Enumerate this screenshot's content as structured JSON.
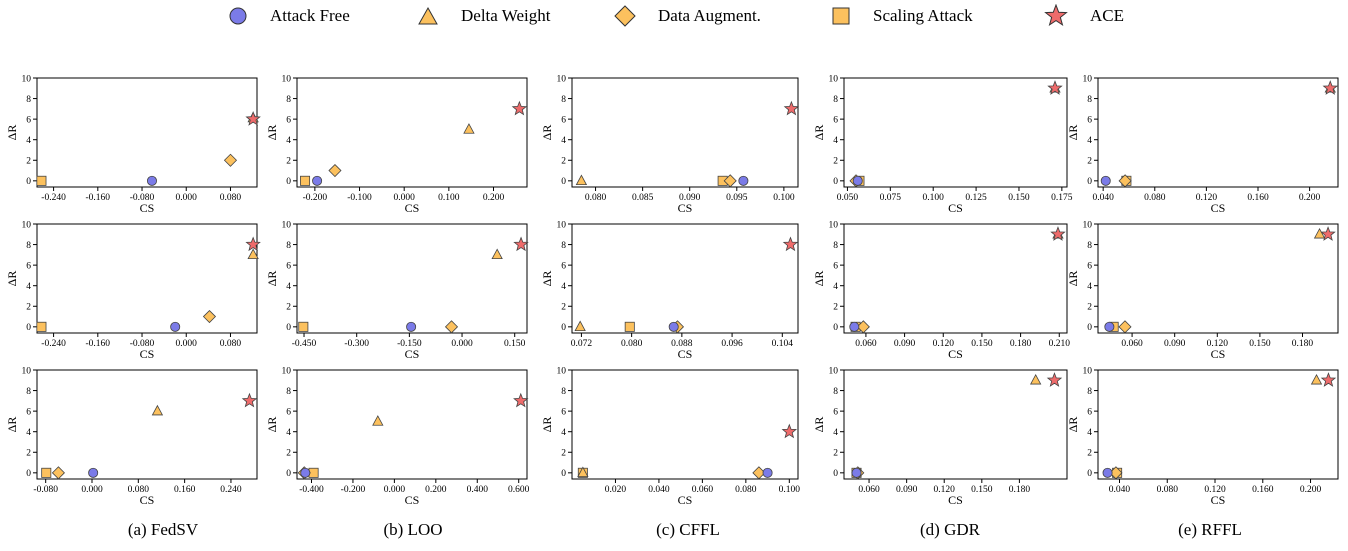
{
  "legend": [
    {
      "key": "attack_free",
      "label": "Attack Free",
      "marker": "circle",
      "color": "#7b7be8"
    },
    {
      "key": "delta_weight",
      "label": "Delta Weight",
      "marker": "triangle",
      "color": "#fcc15e"
    },
    {
      "key": "data_augment",
      "label": "Data Augment.",
      "marker": "diamond",
      "color": "#fcc15e"
    },
    {
      "key": "scaling_attack",
      "label": "Scaling Attack",
      "marker": "square",
      "color": "#fcc15e"
    },
    {
      "key": "ace",
      "label": "ACE",
      "marker": "star",
      "color": "#ee6b6b"
    }
  ],
  "captions": [
    "(a) FedSV",
    "(b) LOO",
    "(c) CFFL",
    "(d) GDR",
    "(e) RFFL"
  ],
  "chart_data": [
    {
      "type": "scatter",
      "row": 0,
      "col": 0,
      "xlabel": "CS",
      "ylabel": "ΔR",
      "xlim": [
        -0.27,
        0.128
      ],
      "ylim": [
        -0.6,
        10
      ],
      "xticks": [
        -0.24,
        -0.16,
        -0.08,
        0.0,
        0.08
      ],
      "xtick_labels": [
        "-0.240",
        "-0.160",
        "-0.080",
        "0.000",
        "0.080"
      ],
      "yticks": [
        0,
        2,
        4,
        6,
        8,
        10
      ],
      "points": {
        "attack_free": [
          -0.062,
          0
        ],
        "delta_weight": [
          0.121,
          6.1
        ],
        "data_augment": [
          0.08,
          2
        ],
        "scaling_attack": [
          -0.262,
          0
        ],
        "ace": [
          0.121,
          6
        ]
      }
    },
    {
      "type": "scatter",
      "row": 0,
      "col": 1,
      "xlabel": "CS",
      "ylabel": "ΔR",
      "xlim": [
        -0.24,
        0.275
      ],
      "ylim": [
        -0.6,
        10
      ],
      "xticks": [
        -0.2,
        -0.1,
        0.0,
        0.1,
        0.2
      ],
      "xtick_labels": [
        "-0.200",
        "-0.100",
        "0.000",
        "0.100",
        "0.200"
      ],
      "yticks": [
        0,
        2,
        4,
        6,
        8,
        10
      ],
      "points": {
        "attack_free": [
          -0.195,
          0
        ],
        "delta_weight": [
          0.145,
          5
        ],
        "data_augment": [
          -0.155,
          1
        ],
        "scaling_attack": [
          -0.222,
          0
        ],
        "ace": [
          0.258,
          7
        ]
      }
    },
    {
      "type": "scatter",
      "row": 0,
      "col": 2,
      "xlabel": "CS",
      "ylabel": "ΔR",
      "xlim": [
        0.0775,
        0.1015
      ],
      "ylim": [
        -0.6,
        10
      ],
      "xticks": [
        0.08,
        0.085,
        0.09,
        0.095,
        0.1
      ],
      "xtick_labels": [
        "0.080",
        "0.085",
        "0.090",
        "0.095",
        "0.100"
      ],
      "yticks": [
        0,
        2,
        4,
        6,
        8,
        10
      ],
      "points": {
        "attack_free": [
          0.0957,
          0
        ],
        "delta_weight": [
          0.0785,
          0
        ],
        "data_augment": [
          0.0943,
          0
        ],
        "scaling_attack": [
          0.0935,
          0
        ],
        "ace": [
          0.1008,
          7
        ]
      }
    },
    {
      "type": "scatter",
      "row": 0,
      "col": 3,
      "xlabel": "CS",
      "ylabel": "ΔR",
      "xlim": [
        0.048,
        0.178
      ],
      "ylim": [
        -0.6,
        10
      ],
      "xticks": [
        0.05,
        0.075,
        0.1,
        0.125,
        0.15,
        0.175
      ],
      "xtick_labels": [
        "0.050",
        "0.075",
        "0.100",
        "0.125",
        "0.150",
        "0.175"
      ],
      "yticks": [
        0,
        2,
        4,
        6,
        8,
        10
      ],
      "points": {
        "attack_free": [
          0.056,
          0
        ],
        "delta_weight": [
          0.171,
          9
        ],
        "data_augment": [
          0.055,
          0
        ],
        "scaling_attack": [
          0.057,
          0
        ],
        "ace": [
          0.171,
          9
        ]
      }
    },
    {
      "type": "scatter",
      "row": 0,
      "col": 4,
      "xlabel": "CS",
      "ylabel": "ΔR",
      "xlim": [
        0.036,
        0.222
      ],
      "ylim": [
        -0.6,
        10
      ],
      "xticks": [
        0.04,
        0.08,
        0.12,
        0.16,
        0.2
      ],
      "xtick_labels": [
        "0.040",
        "0.080",
        "0.120",
        "0.160",
        "0.200"
      ],
      "yticks": [
        0,
        2,
        4,
        6,
        8,
        10
      ],
      "points": {
        "attack_free": [
          0.042,
          0
        ],
        "delta_weight": [
          0.216,
          9
        ],
        "data_augment": [
          0.057,
          0
        ],
        "scaling_attack": [
          0.058,
          0
        ],
        "ace": [
          0.216,
          9
        ]
      }
    },
    {
      "type": "scatter",
      "row": 1,
      "col": 0,
      "xlabel": "CS",
      "ylabel": "ΔR",
      "xlim": [
        -0.27,
        0.128
      ],
      "ylim": [
        -0.6,
        10
      ],
      "xticks": [
        -0.24,
        -0.16,
        -0.08,
        0.0,
        0.08
      ],
      "xtick_labels": [
        "-0.240",
        "-0.160",
        "-0.080",
        "0.000",
        "0.080"
      ],
      "yticks": [
        0,
        2,
        4,
        6,
        8,
        10
      ],
      "points": {
        "attack_free": [
          -0.02,
          0
        ],
        "delta_weight": [
          0.121,
          7
        ],
        "data_augment": [
          0.042,
          1
        ],
        "scaling_attack": [
          -0.262,
          0
        ],
        "ace": [
          0.121,
          8
        ]
      }
    },
    {
      "type": "scatter",
      "row": 1,
      "col": 1,
      "xlabel": "CS",
      "ylabel": "ΔR",
      "xlim": [
        -0.47,
        0.185
      ],
      "ylim": [
        -0.6,
        10
      ],
      "xticks": [
        -0.45,
        -0.3,
        -0.15,
        0.0,
        0.15
      ],
      "xtick_labels": [
        "-0.450",
        "-0.300",
        "-0.150",
        "0.000",
        "0.150"
      ],
      "yticks": [
        0,
        2,
        4,
        6,
        8,
        10
      ],
      "points": {
        "attack_free": [
          -0.145,
          0
        ],
        "delta_weight": [
          0.1,
          7
        ],
        "data_augment": [
          -0.03,
          0
        ],
        "scaling_attack": [
          -0.452,
          0
        ],
        "ace": [
          0.168,
          8
        ]
      }
    },
    {
      "type": "scatter",
      "row": 1,
      "col": 2,
      "xlabel": "CS",
      "ylabel": "ΔR",
      "xlim": [
        0.0705,
        0.1065
      ],
      "ylim": [
        -0.6,
        10
      ],
      "xticks": [
        0.072,
        0.08,
        0.088,
        0.096,
        0.104
      ],
      "xtick_labels": [
        "0.072",
        "0.080",
        "0.088",
        "0.096",
        "0.104"
      ],
      "yticks": [
        0,
        2,
        4,
        6,
        8,
        10
      ],
      "points": {
        "attack_free": [
          0.0867,
          0
        ],
        "delta_weight": [
          0.0718,
          0
        ],
        "data_augment": [
          0.0873,
          0
        ],
        "scaling_attack": [
          0.0797,
          0
        ],
        "ace": [
          0.1053,
          8
        ]
      }
    },
    {
      "type": "scatter",
      "row": 1,
      "col": 3,
      "xlabel": "CS",
      "ylabel": "ΔR",
      "xlim": [
        0.043,
        0.216
      ],
      "ylim": [
        -0.6,
        10
      ],
      "xticks": [
        0.06,
        0.09,
        0.12,
        0.15,
        0.18,
        0.21
      ],
      "xtick_labels": [
        "0.060",
        "0.090",
        "0.120",
        "0.150",
        "0.180",
        "0.210"
      ],
      "yticks": [
        0,
        2,
        4,
        6,
        8,
        10
      ],
      "points": {
        "attack_free": [
          0.051,
          0
        ],
        "delta_weight": [
          0.209,
          9
        ],
        "data_augment": [
          0.058,
          0
        ],
        "scaling_attack": [
          0.052,
          0
        ],
        "ace": [
          0.209,
          9
        ]
      }
    },
    {
      "type": "scatter",
      "row": 1,
      "col": 4,
      "xlabel": "CS",
      "ylabel": "ΔR",
      "xlim": [
        0.036,
        0.205
      ],
      "ylim": [
        -0.6,
        10
      ],
      "xticks": [
        0.06,
        0.09,
        0.12,
        0.15,
        0.18
      ],
      "xtick_labels": [
        "0.060",
        "0.090",
        "0.120",
        "0.150",
        "0.180"
      ],
      "yticks": [
        0,
        2,
        4,
        6,
        8,
        10
      ],
      "points": {
        "attack_free": [
          0.044,
          0
        ],
        "delta_weight": [
          0.192,
          9
        ],
        "data_augment": [
          0.055,
          0
        ],
        "scaling_attack": [
          0.047,
          0
        ],
        "ace": [
          0.198,
          9
        ]
      }
    },
    {
      "type": "scatter",
      "row": 2,
      "col": 0,
      "xlabel": "CS",
      "ylabel": "ΔR",
      "xlim": [
        -0.095,
        0.285
      ],
      "ylim": [
        -0.6,
        10
      ],
      "xticks": [
        -0.08,
        0.0,
        0.08,
        0.16,
        0.24
      ],
      "xtick_labels": [
        "-0.080",
        "0.000",
        "0.080",
        "0.160",
        "0.240"
      ],
      "yticks": [
        0,
        2,
        4,
        6,
        8,
        10
      ],
      "points": {
        "attack_free": [
          0.002,
          0
        ],
        "delta_weight": [
          0.113,
          6
        ],
        "data_augment": [
          -0.058,
          0
        ],
        "scaling_attack": [
          -0.079,
          0
        ],
        "ace": [
          0.272,
          7
        ]
      }
    },
    {
      "type": "scatter",
      "row": 2,
      "col": 1,
      "xlabel": "CS",
      "ylabel": "ΔR",
      "xlim": [
        -0.47,
        0.64
      ],
      "ylim": [
        -0.6,
        10
      ],
      "xticks": [
        -0.4,
        -0.2,
        0.0,
        0.2,
        0.4,
        0.6
      ],
      "xtick_labels": [
        "-0.400",
        "-0.200",
        "0.000",
        "0.200",
        "0.400",
        "0.600"
      ],
      "yticks": [
        0,
        2,
        4,
        6,
        8,
        10
      ],
      "points": {
        "attack_free": [
          -0.43,
          0
        ],
        "delta_weight": [
          -0.08,
          5
        ],
        "data_augment": [
          -0.435,
          0
        ],
        "scaling_attack": [
          -0.39,
          0
        ],
        "ace": [
          0.61,
          7
        ]
      }
    },
    {
      "type": "scatter",
      "row": 2,
      "col": 2,
      "xlabel": "CS",
      "ylabel": "ΔR",
      "xlim": [
        0.0,
        0.104
      ],
      "ylim": [
        -0.6,
        10
      ],
      "xticks": [
        0.02,
        0.04,
        0.06,
        0.08,
        0.1
      ],
      "xtick_labels": [
        "0.020",
        "0.040",
        "0.060",
        "0.080",
        "0.100"
      ],
      "yticks": [
        0,
        2,
        4,
        6,
        8,
        10
      ],
      "points": {
        "attack_free": [
          0.09,
          0
        ],
        "delta_weight": [
          0.005,
          0
        ],
        "data_augment": [
          0.086,
          0
        ],
        "scaling_attack": [
          0.005,
          0
        ],
        "ace": [
          0.1,
          4
        ]
      }
    },
    {
      "type": "scatter",
      "row": 2,
      "col": 3,
      "xlabel": "CS",
      "ylabel": "ΔR",
      "xlim": [
        0.04,
        0.218
      ],
      "ylim": [
        -0.6,
        10
      ],
      "xticks": [
        0.06,
        0.09,
        0.12,
        0.15,
        0.18
      ],
      "xtick_labels": [
        "0.060",
        "0.090",
        "0.120",
        "0.150",
        "0.180"
      ],
      "yticks": [
        0,
        2,
        4,
        6,
        8,
        10
      ],
      "points": {
        "attack_free": [
          0.05,
          0
        ],
        "delta_weight": [
          0.193,
          9
        ],
        "data_augment": [
          0.051,
          0
        ],
        "scaling_attack": [
          0.05,
          0
        ],
        "ace": [
          0.208,
          9
        ]
      }
    },
    {
      "type": "scatter",
      "row": 2,
      "col": 4,
      "xlabel": "CS",
      "ylabel": "ΔR",
      "xlim": [
        0.022,
        0.223
      ],
      "ylim": [
        -0.6,
        10
      ],
      "xticks": [
        0.04,
        0.08,
        0.12,
        0.16,
        0.2
      ],
      "xtick_labels": [
        "0.040",
        "0.080",
        "0.120",
        "0.160",
        "0.200"
      ],
      "yticks": [
        0,
        2,
        4,
        6,
        8,
        10
      ],
      "points": {
        "attack_free": [
          0.03,
          0
        ],
        "delta_weight": [
          0.205,
          9
        ],
        "data_augment": [
          0.037,
          0
        ],
        "scaling_attack": [
          0.038,
          0
        ],
        "ace": [
          0.215,
          9
        ]
      }
    }
  ]
}
